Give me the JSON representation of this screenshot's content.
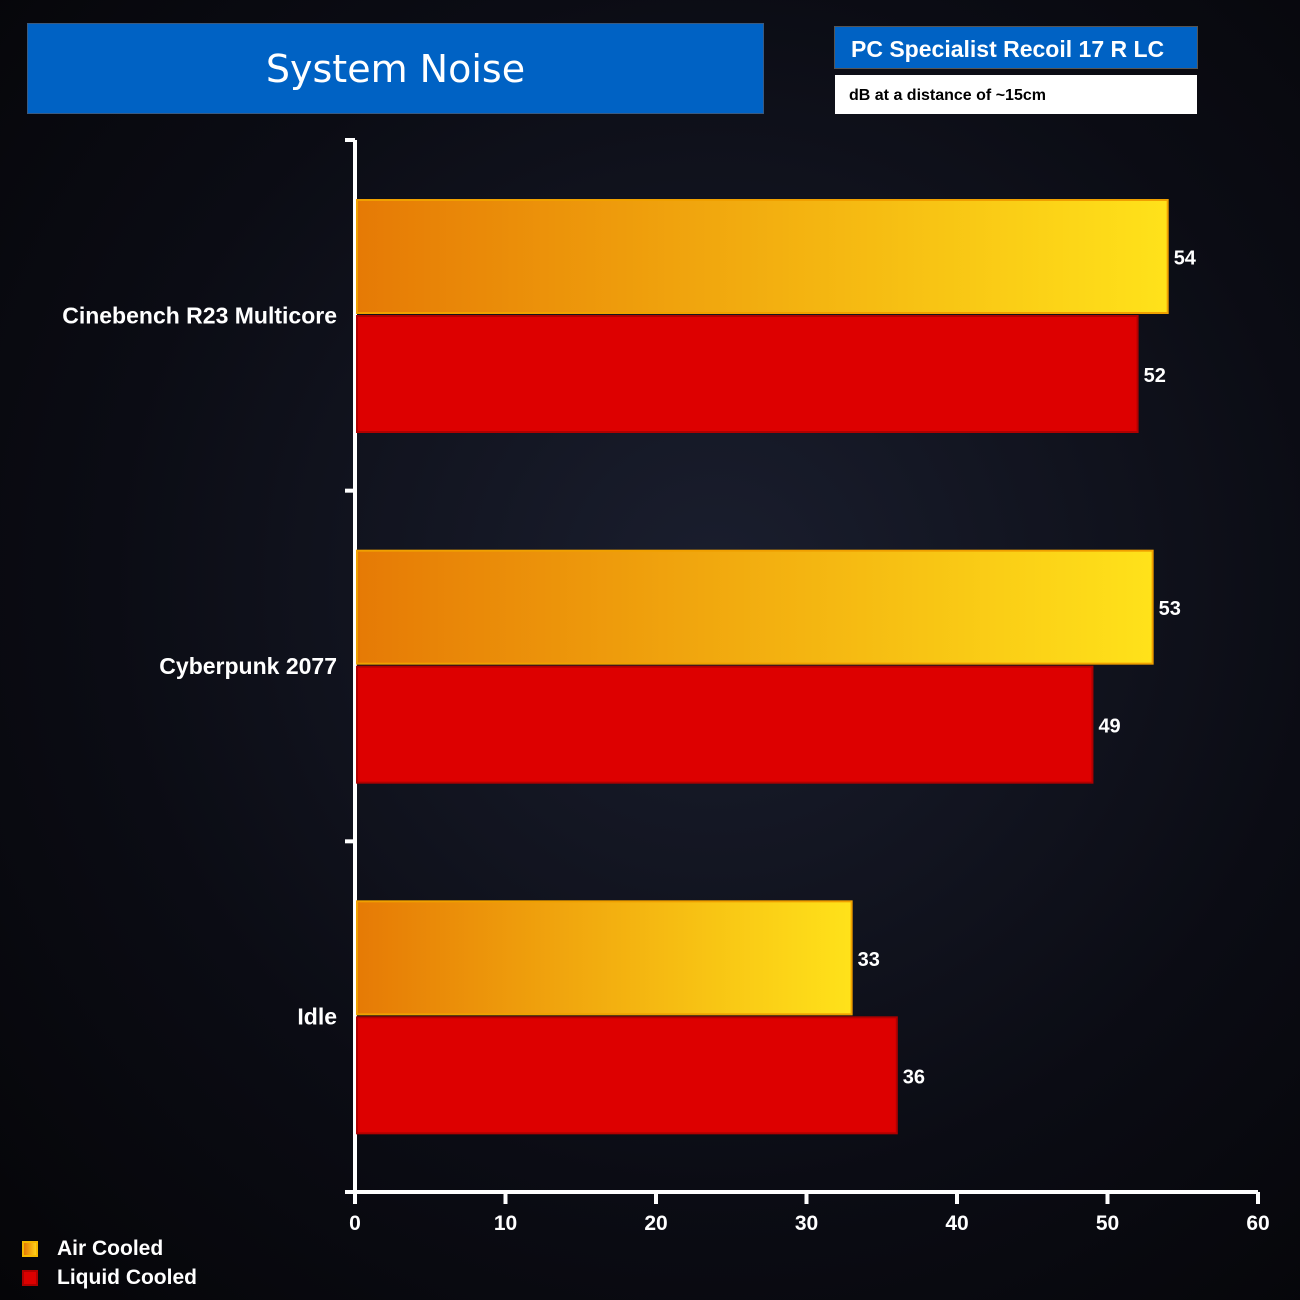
{
  "chart_data": {
    "type": "bar",
    "orientation": "horizontal",
    "title": "System Noise",
    "subtitle": "PC Specialist Recoil 17 R LC",
    "note": "dB at a distance of  ~15cm",
    "categories": [
      "Cinebench R23 Multicore",
      "Cyberpunk 2077",
      "Idle"
    ],
    "series": [
      {
        "name": "Air Cooled",
        "values": [
          54,
          53,
          33
        ],
        "color": "#f5b800"
      },
      {
        "name": "Liquid Cooled",
        "values": [
          52,
          49,
          36
        ],
        "color": "#dd0000"
      }
    ],
    "xlim": [
      0,
      60
    ],
    "xticks": [
      "0",
      "10",
      "20",
      "30",
      "40",
      "50",
      "60"
    ],
    "legend": "bottom-left",
    "grid": false
  }
}
